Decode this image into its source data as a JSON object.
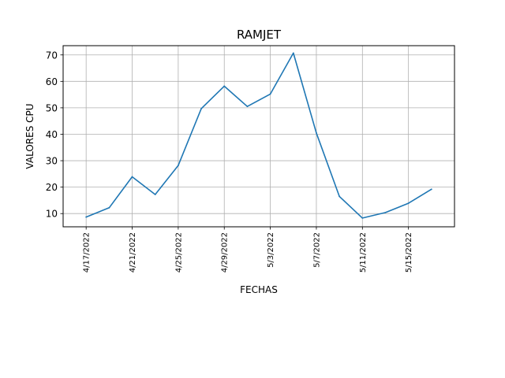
{
  "chart_data": {
    "type": "line",
    "title": "RAMJET",
    "xlabel": "FECHAS",
    "ylabel": "VALORES CPU",
    "grid": true,
    "legend": "none",
    "x": [
      "4/17/2022",
      "4/19/2022",
      "4/21/2022",
      "4/23/2022",
      "4/25/2022",
      "4/27/2022",
      "4/29/2022",
      "5/1/2022",
      "5/3/2022",
      "5/5/2022",
      "5/7/2022",
      "5/9/2022",
      "5/11/2022",
      "5/13/2022",
      "5/15/2022",
      "5/17/2022"
    ],
    "x_range": [
      "4/15/2022",
      "5/19/2022"
    ],
    "xticks": [
      "4/17/2022",
      "4/21/2022",
      "4/25/2022",
      "4/29/2022",
      "5/3/2022",
      "5/7/2022",
      "5/11/2022",
      "5/15/2022"
    ],
    "yticks": [
      10,
      20,
      30,
      40,
      50,
      60,
      70
    ],
    "ylim": [
      5,
      73.5
    ],
    "series": [
      {
        "color": "#1f77b4",
        "values": [
          8.7,
          12.2,
          23.9,
          17.2,
          28.2,
          49.7,
          58.2,
          50.5,
          55.2,
          70.7,
          40.5,
          16.5,
          8.3,
          10.4,
          13.9,
          19.2
        ]
      }
    ]
  }
}
